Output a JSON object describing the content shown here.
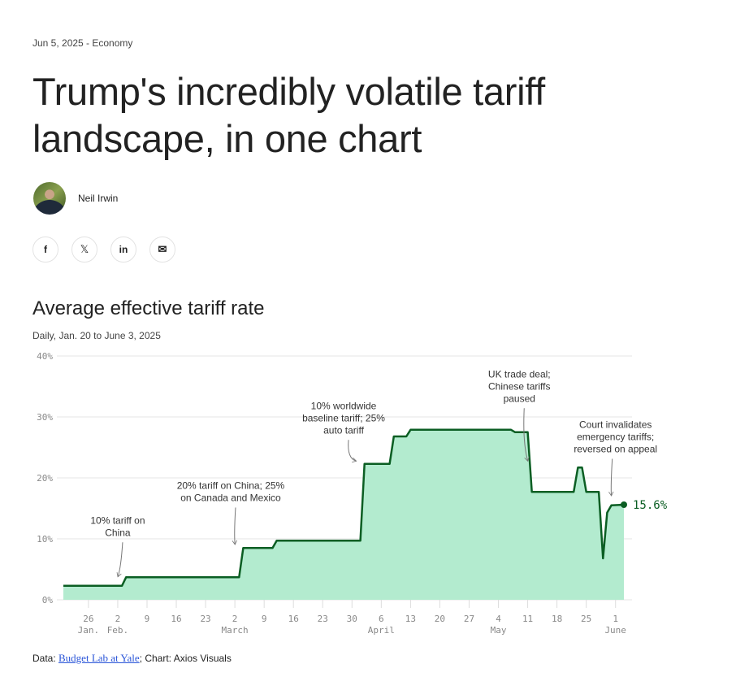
{
  "article": {
    "meta": "Jun 5, 2025 - Economy",
    "title": "Trump's incredibly volatile tariff landscape, in one chart",
    "author": "Neil Irwin"
  },
  "share": {
    "facebook": "f",
    "x": "𝕏",
    "linkedin": "in",
    "email": "✉"
  },
  "footer": {
    "data_prefix": "Data: ",
    "source_link": "Budget Lab at Yale",
    "suffix": "; Chart: Axios Visuals"
  },
  "chart_data": {
    "type": "area",
    "title": "Average effective tariff rate",
    "subtitle": "Daily, Jan. 20 to June 3, 2025",
    "xlabel": "",
    "ylabel": "",
    "ylim": [
      0,
      40
    ],
    "xlim": [
      "2025-01-20",
      "2025-06-03"
    ],
    "grid": true,
    "colors": {
      "line": "#0b5e23",
      "fill": "#b3ebcf",
      "label": "#0b5e23"
    },
    "yticks": [
      {
        "v": 0,
        "label": "0%"
      },
      {
        "v": 10,
        "label": "10%"
      },
      {
        "v": 20,
        "label": "20%"
      },
      {
        "v": 30,
        "label": "30%"
      },
      {
        "v": 40,
        "label": "40%"
      }
    ],
    "xticks": [
      {
        "date": "2025-01-26",
        "label": "26",
        "month": "Jan."
      },
      {
        "date": "2025-02-02",
        "label": "2",
        "month": "Feb."
      },
      {
        "date": "2025-02-09",
        "label": "9"
      },
      {
        "date": "2025-02-16",
        "label": "16"
      },
      {
        "date": "2025-02-23",
        "label": "23"
      },
      {
        "date": "2025-03-02",
        "label": "2",
        "month": "March"
      },
      {
        "date": "2025-03-09",
        "label": "9"
      },
      {
        "date": "2025-03-16",
        "label": "16"
      },
      {
        "date": "2025-03-23",
        "label": "23"
      },
      {
        "date": "2025-03-30",
        "label": "30"
      },
      {
        "date": "2025-04-06",
        "label": "6",
        "month": "April"
      },
      {
        "date": "2025-04-13",
        "label": "13"
      },
      {
        "date": "2025-04-20",
        "label": "20"
      },
      {
        "date": "2025-04-27",
        "label": "27"
      },
      {
        "date": "2025-05-04",
        "label": "4",
        "month": "May"
      },
      {
        "date": "2025-05-11",
        "label": "11"
      },
      {
        "date": "2025-05-18",
        "label": "18"
      },
      {
        "date": "2025-05-25",
        "label": "25"
      },
      {
        "date": "2025-06-01",
        "label": "1",
        "month": "June"
      }
    ],
    "series": [
      {
        "name": "Average effective tariff rate",
        "points": [
          [
            "2025-01-20",
            2.3
          ],
          [
            "2025-02-03",
            2.3
          ],
          [
            "2025-02-04",
            3.7
          ],
          [
            "2025-03-03",
            3.7
          ],
          [
            "2025-03-04",
            8.5
          ],
          [
            "2025-03-11",
            8.5
          ],
          [
            "2025-03-12",
            9.7
          ],
          [
            "2025-04-01",
            9.7
          ],
          [
            "2025-04-02",
            22.3
          ],
          [
            "2025-04-08",
            22.3
          ],
          [
            "2025-04-09",
            26.8
          ],
          [
            "2025-04-12",
            26.8
          ],
          [
            "2025-04-13",
            27.9
          ],
          [
            "2025-05-07",
            27.9
          ],
          [
            "2025-05-08",
            27.5
          ],
          [
            "2025-05-11",
            27.5
          ],
          [
            "2025-05-12",
            17.7
          ],
          [
            "2025-05-22",
            17.7
          ],
          [
            "2025-05-23",
            21.7
          ],
          [
            "2025-05-24",
            21.7
          ],
          [
            "2025-05-25",
            17.7
          ],
          [
            "2025-05-28",
            17.7
          ],
          [
            "2025-05-29",
            6.8
          ],
          [
            "2025-05-30",
            14.3
          ],
          [
            "2025-05-31",
            15.5
          ],
          [
            "2025-06-03",
            15.6
          ]
        ]
      }
    ],
    "end_label": "15.6%",
    "annotations": [
      {
        "lines": [
          "10% tariff on",
          "China"
        ],
        "date": "2025-02-03",
        "value": 3.5,
        "text_date": "2025-02-02",
        "text_value": 12.5
      },
      {
        "lines": [
          "20% tariff on China; 25%",
          "on Canada and Mexico"
        ],
        "date": "2025-03-03",
        "value": 8.8,
        "text_date": "2025-03-01",
        "text_value": 18.2
      },
      {
        "lines": [
          "10% worldwide",
          "baseline tariff; 25%",
          "auto tariff"
        ],
        "date": "2025-04-01",
        "value": 22.5,
        "text_date": "2025-03-28",
        "text_value": 31.3
      },
      {
        "lines": [
          "UK trade deal;",
          "Chinese tariffs",
          "paused"
        ],
        "date": "2025-05-12",
        "value": 22.5,
        "text_date": "2025-05-09",
        "text_value": 36.5
      },
      {
        "lines": [
          "Court invalidates",
          "emergency tariffs;",
          "reversed on appeal"
        ],
        "date": "2025-05-31",
        "value": 16.8,
        "text_date": "2025-06-01",
        "text_value": 28.2
      }
    ]
  }
}
